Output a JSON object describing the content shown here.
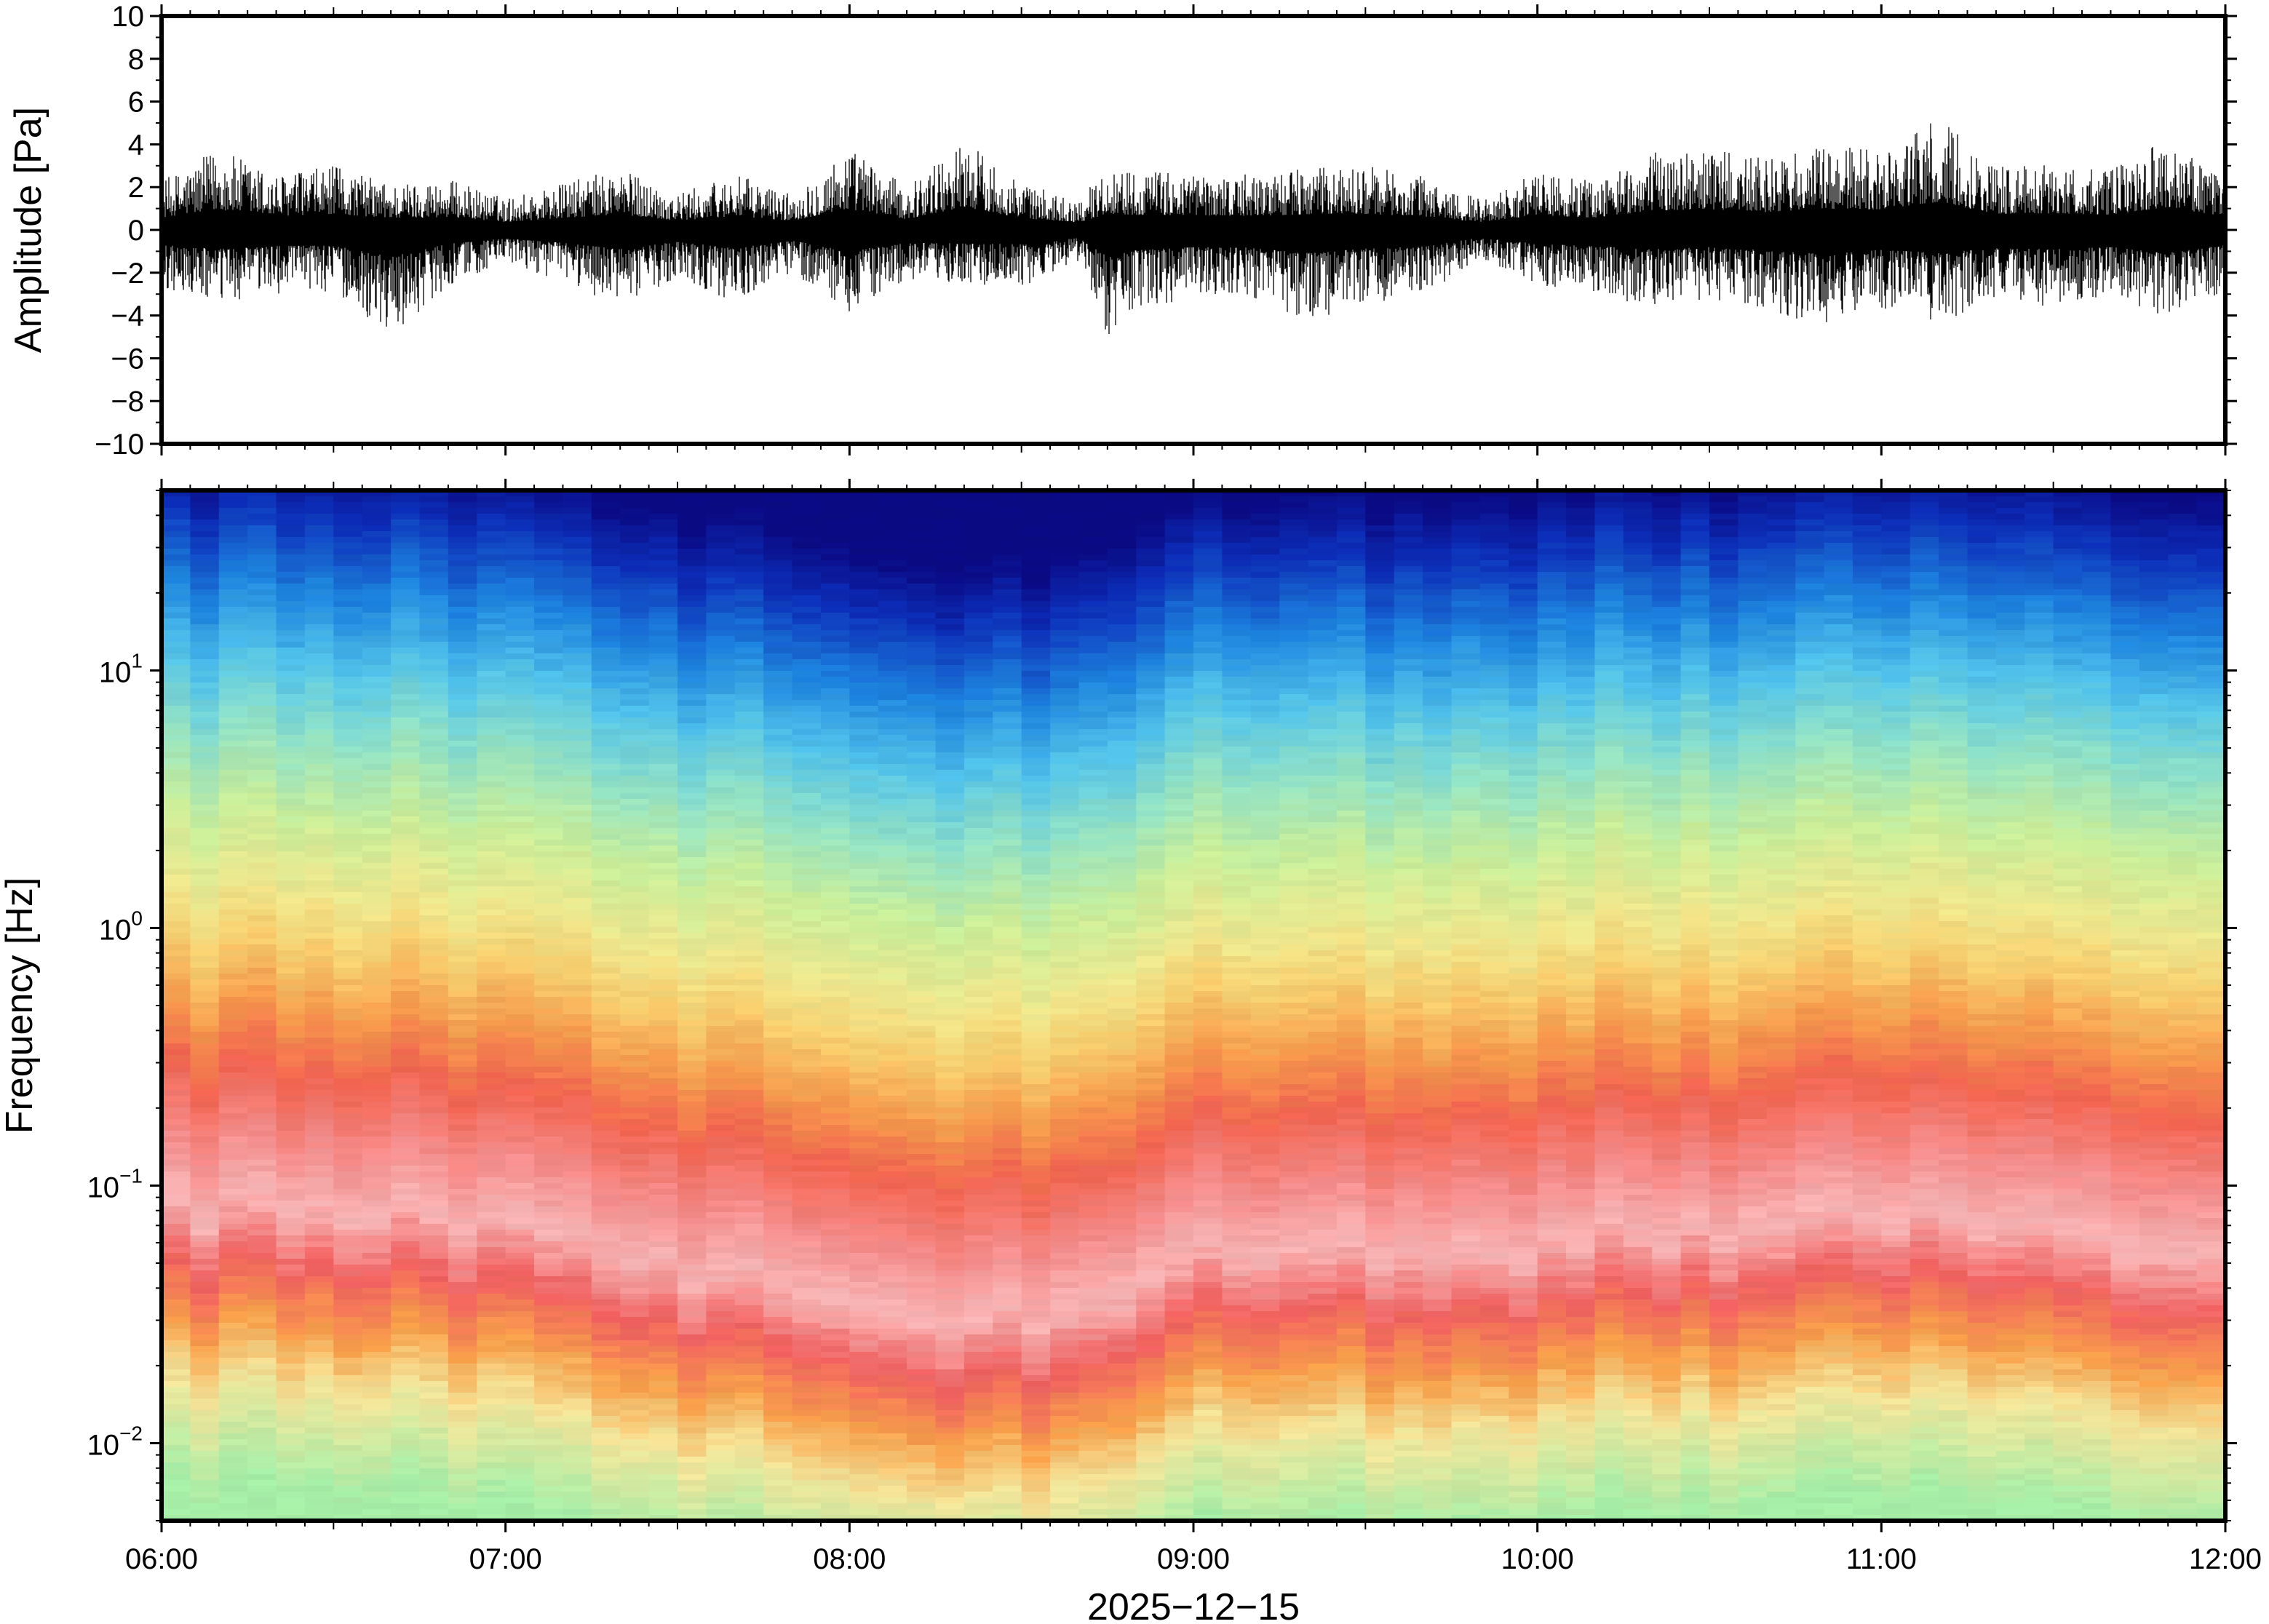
{
  "chart_data": [
    {
      "type": "line",
      "ylabel": "Amplitude [Pa]",
      "ylim": [
        -10,
        10
      ],
      "yticks": [
        -10,
        -8,
        -6,
        -4,
        -2,
        0,
        2,
        4,
        6,
        8,
        10
      ],
      "ytick_labels": [
        "−10",
        "−8",
        "−6",
        "−4",
        "−2",
        "0",
        "2",
        "4",
        "6",
        "8",
        "10"
      ],
      "xlim": [
        "06:00",
        "12:00"
      ],
      "x_date": "2025-12-15",
      "series": [
        {
          "color": "#000000",
          "envelope": [
            {
              "t": "06:00",
              "min": -2.8,
              "max": 2.3
            },
            {
              "t": "06:10",
              "min": -3.6,
              "max": 3.8
            },
            {
              "t": "06:20",
              "min": -3.0,
              "max": 2.6
            },
            {
              "t": "06:30",
              "min": -2.9,
              "max": 3.0
            },
            {
              "t": "06:40",
              "min": -5.0,
              "max": 2.2
            },
            {
              "t": "06:50",
              "min": -2.6,
              "max": 2.4
            },
            {
              "t": "07:00",
              "min": -1.6,
              "max": 1.5
            },
            {
              "t": "07:10",
              "min": -2.4,
              "max": 2.2
            },
            {
              "t": "07:20",
              "min": -3.6,
              "max": 2.9
            },
            {
              "t": "07:30",
              "min": -2.2,
              "max": 1.7
            },
            {
              "t": "07:40",
              "min": -3.4,
              "max": 2.6
            },
            {
              "t": "07:50",
              "min": -2.0,
              "max": 1.7
            },
            {
              "t": "08:00",
              "min": -3.9,
              "max": 3.9
            },
            {
              "t": "08:10",
              "min": -2.4,
              "max": 2.0
            },
            {
              "t": "08:20",
              "min": -2.5,
              "max": 4.3
            },
            {
              "t": "08:30",
              "min": -2.7,
              "max": 2.2
            },
            {
              "t": "08:40",
              "min": -1.5,
              "max": 1.4
            },
            {
              "t": "08:45",
              "min": -5.0,
              "max": 3.0
            },
            {
              "t": "08:50",
              "min": -3.8,
              "max": 2.8
            },
            {
              "t": "09:00",
              "min": -3.2,
              "max": 2.7
            },
            {
              "t": "09:10",
              "min": -3.3,
              "max": 2.6
            },
            {
              "t": "09:20",
              "min": -4.3,
              "max": 2.9
            },
            {
              "t": "09:30",
              "min": -3.5,
              "max": 3.0
            },
            {
              "t": "09:40",
              "min": -3.1,
              "max": 2.5
            },
            {
              "t": "09:50",
              "min": -1.4,
              "max": 1.5
            },
            {
              "t": "10:00",
              "min": -2.6,
              "max": 2.7
            },
            {
              "t": "10:10",
              "min": -3.0,
              "max": 2.3
            },
            {
              "t": "10:20",
              "min": -3.6,
              "max": 3.6
            },
            {
              "t": "10:30",
              "min": -3.2,
              "max": 3.9
            },
            {
              "t": "10:40",
              "min": -3.8,
              "max": 3.3
            },
            {
              "t": "10:50",
              "min": -4.5,
              "max": 3.9
            },
            {
              "t": "11:00",
              "min": -3.7,
              "max": 3.8
            },
            {
              "t": "11:10",
              "min": -4.3,
              "max": 5.2
            },
            {
              "t": "11:20",
              "min": -3.4,
              "max": 3.0
            },
            {
              "t": "11:30",
              "min": -3.6,
              "max": 3.1
            },
            {
              "t": "11:40",
              "min": -3.2,
              "max": 2.8
            },
            {
              "t": "11:50",
              "min": -4.3,
              "max": 4.3
            },
            {
              "t": "12:00",
              "min": -2.8,
              "max": 2.4
            }
          ]
        }
      ]
    },
    {
      "type": "heatmap",
      "ylabel": "Frequency [Hz]",
      "yscale": "log",
      "ylim": [
        0.005,
        50
      ],
      "yticks": [
        0.01,
        0.1,
        1,
        10
      ],
      "ytick_labels": [
        {
          "base": "10",
          "exp": "−2"
        },
        {
          "base": "10",
          "exp": "−1"
        },
        {
          "base": "10",
          "exp": "0"
        },
        {
          "base": "10",
          "exp": "1"
        }
      ],
      "xlim": [
        "06:00",
        "12:00"
      ],
      "xticks": [
        "06:00",
        "07:00",
        "08:00",
        "09:00",
        "10:00",
        "11:00",
        "12:00"
      ],
      "xlabel": "2025−12−15",
      "colormap": [
        "#08088a",
        "#0b2fc6",
        "#1f8ee8",
        "#4cc4ee",
        "#8fe3c8",
        "#c8f0a0",
        "#f0ea90",
        "#f9d070",
        "#f7a548",
        "#f26a4e",
        "#f05a5a",
        "#f59b9b",
        "#f8c3c3"
      ],
      "color_profile": [
        {
          "f_hz": 50,
          "color": "#0a0a84"
        },
        {
          "f_hz": 30,
          "color": "#0c2eb8"
        },
        {
          "f_hz": 15,
          "color": "#1d84de"
        },
        {
          "f_hz": 8,
          "color": "#52c3ea"
        },
        {
          "f_hz": 4,
          "color": "#93e2c4"
        },
        {
          "f_hz": 2,
          "color": "#c9ee9a"
        },
        {
          "f_hz": 1,
          "color": "#eee78e"
        },
        {
          "f_hz": 0.6,
          "color": "#f7cd6d"
        },
        {
          "f_hz": 0.35,
          "color": "#f59a4c"
        },
        {
          "f_hz": 0.2,
          "color": "#f16450"
        },
        {
          "f_hz": 0.1,
          "color": "#f58f8f"
        },
        {
          "f_hz": 0.06,
          "color": "#f7b5b5"
        },
        {
          "f_hz": 0.035,
          "color": "#f06060"
        },
        {
          "f_hz": 0.02,
          "color": "#f7a04a"
        },
        {
          "f_hz": 0.012,
          "color": "#f3e59a"
        },
        {
          "f_hz": 0.005,
          "color": "#a6eea8"
        }
      ],
      "bands": [
        {
          "t": "06:00",
          "mid_hz": 1.0,
          "high_hz": 8
        },
        {
          "t": "07:00",
          "mid_hz": 0.8,
          "high_hz": 8
        },
        {
          "t": "07:40",
          "mid_hz": 0.4,
          "high_hz": 6
        },
        {
          "t": "08:00",
          "mid_hz": 0.25,
          "high_hz": 5
        },
        {
          "t": "08:40",
          "mid_hz": 0.25,
          "high_hz": 5
        },
        {
          "t": "09:00",
          "mid_hz": 0.5,
          "high_hz": 7
        },
        {
          "t": "10:00",
          "mid_hz": 0.6,
          "high_hz": 7
        },
        {
          "t": "11:00",
          "mid_hz": 0.9,
          "high_hz": 8
        },
        {
          "t": "12:00",
          "mid_hz": 0.6,
          "high_hz": 8
        }
      ]
    }
  ]
}
